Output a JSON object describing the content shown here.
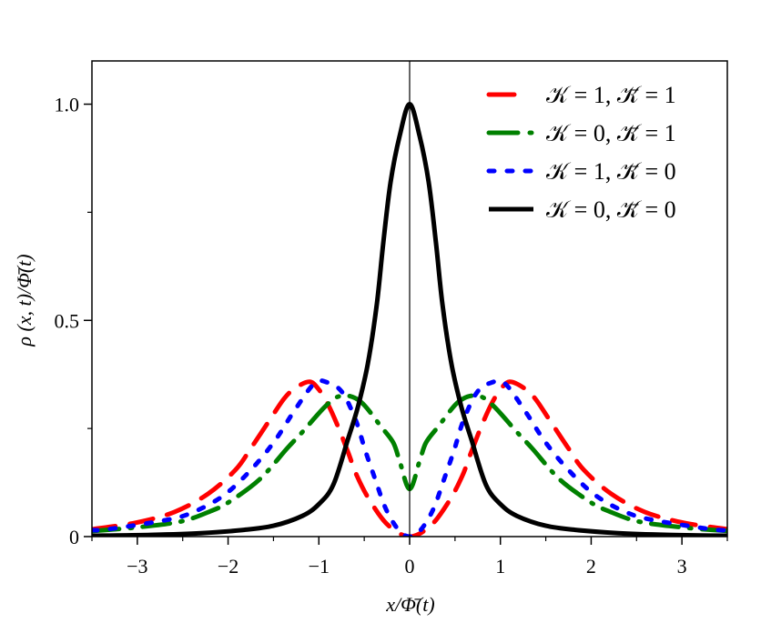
{
  "chart_data": {
    "type": "line",
    "title": "",
    "xlabel": "x/Φ̄(t)",
    "ylabel": "ρ (x, t)/Φ̄(t)",
    "xlim": [
      -3.5,
      3.5
    ],
    "ylim": [
      0,
      1.1
    ],
    "grid": false,
    "legend_position": "top-right",
    "x_ticks": [
      {
        "value": -3,
        "label": "−3"
      },
      {
        "value": -2,
        "label": "−2"
      },
      {
        "value": -1,
        "label": "−1"
      },
      {
        "value": 0,
        "label": "0"
      },
      {
        "value": 1,
        "label": "1"
      },
      {
        "value": 2,
        "label": "2"
      },
      {
        "value": 3,
        "label": "3"
      }
    ],
    "y_ticks": [
      {
        "value": 0,
        "label": "0"
      },
      {
        "value": 0.5,
        "label": "0.5"
      },
      {
        "value": 1.0,
        "label": "1.0"
      }
    ],
    "series": [
      {
        "name": "𝒦 = 1,  𝒦̄ = 1",
        "color": "#ff0000",
        "style": "dashed",
        "x": [
          -3.5,
          -3.02,
          -2.59,
          -2.22,
          -1.92,
          -1.75,
          -1.55,
          -1.38,
          -1.25,
          -1.1,
          -1.0,
          -0.91,
          -0.8,
          -0.68,
          -0.58,
          -0.44,
          -0.24,
          0,
          0.24,
          0.44,
          0.58,
          0.68,
          0.8,
          0.91,
          1.0,
          1.1,
          1.25,
          1.38,
          1.55,
          1.75,
          1.92,
          2.22,
          2.59,
          3.02,
          3.5
        ],
        "y": [
          0.017,
          0.032,
          0.057,
          0.099,
          0.154,
          0.204,
          0.267,
          0.32,
          0.345,
          0.358,
          0.34,
          0.31,
          0.26,
          0.196,
          0.14,
          0.084,
          0.027,
          0,
          0.027,
          0.084,
          0.14,
          0.196,
          0.26,
          0.31,
          0.34,
          0.358,
          0.345,
          0.32,
          0.267,
          0.204,
          0.154,
          0.099,
          0.057,
          0.032,
          0.017
        ]
      },
      {
        "name": "𝒦 = 0,  𝒦̄ = 1",
        "color": "#008000",
        "style": "dash-dot",
        "x": [
          -3.5,
          -3.02,
          -2.52,
          -2.19,
          -1.99,
          -1.65,
          -1.35,
          -1.18,
          -0.91,
          -0.74,
          -0.54,
          -0.31,
          -0.18,
          -0.11,
          0,
          0.11,
          0.18,
          0.31,
          0.54,
          0.74,
          0.91,
          1.18,
          1.35,
          1.65,
          1.99,
          2.19,
          2.52,
          3.02,
          3.5
        ],
        "y": [
          0.013,
          0.021,
          0.035,
          0.059,
          0.08,
          0.133,
          0.204,
          0.242,
          0.305,
          0.326,
          0.312,
          0.253,
          0.217,
          0.175,
          0.11,
          0.175,
          0.217,
          0.253,
          0.312,
          0.326,
          0.305,
          0.242,
          0.204,
          0.133,
          0.08,
          0.059,
          0.035,
          0.021,
          0.013
        ]
      },
      {
        "name": "𝒦 = 1,  𝒦̄ = 0",
        "color": "#0000ff",
        "style": "dotted",
        "x": [
          -3.5,
          -3.32,
          -2.69,
          -2.39,
          -2.05,
          -1.75,
          -1.49,
          -1.28,
          -1.05,
          -0.9,
          -0.74,
          -0.59,
          -0.49,
          -0.38,
          -0.26,
          -0.12,
          0,
          0.12,
          0.26,
          0.38,
          0.49,
          0.59,
          0.74,
          0.9,
          1.05,
          1.28,
          1.49,
          1.75,
          2.05,
          2.39,
          2.69,
          3.32,
          3.5
        ],
        "y": [
          0.015,
          0.017,
          0.038,
          0.056,
          0.095,
          0.154,
          0.22,
          0.288,
          0.354,
          0.356,
          0.333,
          0.267,
          0.2,
          0.133,
          0.063,
          0.015,
          0,
          0.015,
          0.063,
          0.133,
          0.2,
          0.267,
          0.333,
          0.356,
          0.354,
          0.288,
          0.22,
          0.154,
          0.095,
          0.056,
          0.038,
          0.017,
          0.015
        ]
      },
      {
        "name": "𝒦 = 0,  𝒦̄ = 0",
        "color": "#000000",
        "style": "solid",
        "x": [
          -3.5,
          -2.85,
          -2.3,
          -1.85,
          -1.5,
          -1.18,
          -1.0,
          -0.84,
          -0.68,
          -0.57,
          -0.46,
          -0.36,
          -0.29,
          -0.21,
          -0.11,
          0,
          0.11,
          0.21,
          0.29,
          0.36,
          0.46,
          0.57,
          0.68,
          0.84,
          1.0,
          1.18,
          1.5,
          1.85,
          2.3,
          2.85,
          3.5
        ],
        "y": [
          0.002,
          0.004,
          0.008,
          0.015,
          0.025,
          0.048,
          0.075,
          0.12,
          0.225,
          0.3,
          0.4,
          0.54,
          0.68,
          0.82,
          0.926,
          1.0,
          0.926,
          0.82,
          0.68,
          0.54,
          0.4,
          0.3,
          0.225,
          0.12,
          0.075,
          0.048,
          0.025,
          0.015,
          0.008,
          0.004,
          0.002
        ]
      }
    ]
  }
}
